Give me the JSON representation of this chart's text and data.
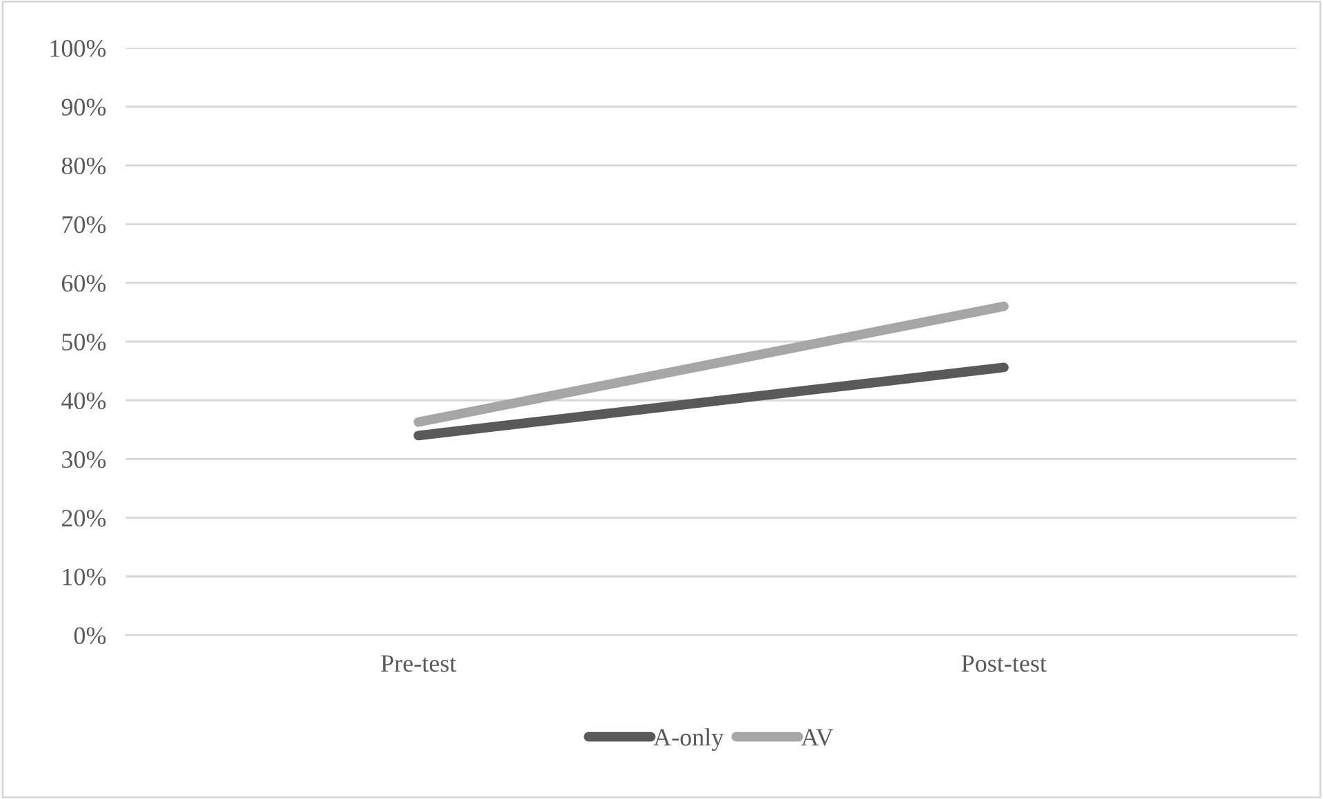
{
  "chart_data": {
    "type": "line",
    "categories": [
      "Pre-test",
      "Post-test"
    ],
    "series": [
      {
        "name": "A-only",
        "color": "#595959",
        "values": [
          34,
          45.6
        ]
      },
      {
        "name": "AV",
        "color": "#a6a6a6",
        "values": [
          36.3,
          56
        ]
      }
    ],
    "ylim": [
      0,
      100
    ],
    "yticks": [
      {
        "value": 0,
        "label": "0%"
      },
      {
        "value": 10,
        "label": "10%"
      },
      {
        "value": 20,
        "label": "20%"
      },
      {
        "value": 30,
        "label": "30%"
      },
      {
        "value": 40,
        "label": "40%"
      },
      {
        "value": 50,
        "label": "50%"
      },
      {
        "value": 60,
        "label": "60%"
      },
      {
        "value": 70,
        "label": "70%"
      },
      {
        "value": 80,
        "label": "80%"
      },
      {
        "value": 90,
        "label": "90%"
      },
      {
        "value": 100,
        "label": "100%"
      }
    ],
    "grid": "y",
    "legend": "bottom",
    "marker": "none",
    "line_style": "solid"
  }
}
